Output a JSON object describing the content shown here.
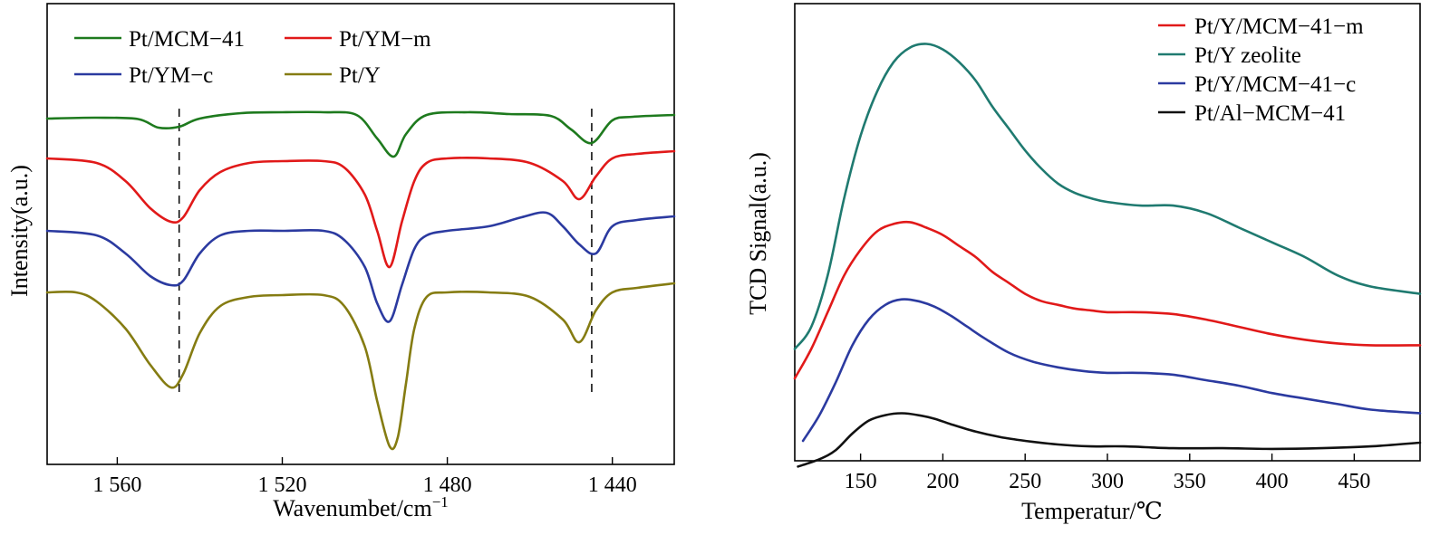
{
  "chart_data": [
    {
      "type": "line",
      "xlabel": "Wavenumbet/cm",
      "xlabel_sup": "−1",
      "ylabel": "Intensity(a.u.)",
      "xlim": [
        1577,
        1425
      ],
      "x_reversed": true,
      "xticks": [
        1560,
        1520,
        1480,
        1440
      ],
      "xtick_labels": [
        "1 560",
        "1 520",
        "1 480",
        "1 440"
      ],
      "y_ticks_shown": false,
      "legend": {
        "placement": "top-left",
        "columns": 2
      },
      "dashed_reference_lines": [
        1545,
        1445
      ],
      "series": [
        {
          "name": "Pt/MCM−41",
          "color": "#1e7a1e",
          "x": [
            1577,
            1565,
            1555,
            1550,
            1545,
            1540,
            1530,
            1520,
            1510,
            1502,
            1497,
            1493,
            1490,
            1485,
            1475,
            1465,
            1455,
            1450,
            1445,
            1440,
            1435,
            1425
          ],
          "y": [
            0.2,
            0.3,
            0.15,
            -0.8,
            -0.7,
            0.2,
            0.8,
            0.9,
            0.9,
            0.6,
            -2.0,
            -4.0,
            -1.5,
            0.6,
            0.9,
            0.7,
            0.5,
            -1.0,
            -2.5,
            0.0,
            0.4,
            0.6
          ]
        },
        {
          "name": "Pt/YM−m",
          "color": "#e11919",
          "x": [
            1577,
            1565,
            1558,
            1552,
            1547,
            1544,
            1540,
            1535,
            1528,
            1520,
            1510,
            1505,
            1500,
            1497,
            1494,
            1491,
            1488,
            1485,
            1480,
            1470,
            1460,
            1452,
            1448,
            1444,
            1440,
            1434,
            1425
          ],
          "y": [
            0.0,
            -0.5,
            -2.5,
            -5.5,
            -7.0,
            -6.5,
            -3.5,
            -1.5,
            -0.5,
            -0.3,
            -0.3,
            -1.0,
            -4.0,
            -8.0,
            -12.0,
            -7.0,
            -2.5,
            -0.5,
            0.0,
            0.0,
            -0.5,
            -2.5,
            -4.5,
            -2.0,
            0.0,
            0.5,
            0.8
          ]
        },
        {
          "name": "Pt/YM−c",
          "color": "#2b3aa0",
          "x": [
            1577,
            1565,
            1558,
            1552,
            1547,
            1544,
            1540,
            1535,
            1528,
            1520,
            1510,
            1505,
            1500,
            1497,
            1494,
            1491,
            1488,
            1485,
            1480,
            1470,
            1462,
            1456,
            1452,
            1448,
            1444,
            1440,
            1434,
            1425
          ],
          "y": [
            0.0,
            -0.5,
            -2.5,
            -5.0,
            -6.0,
            -5.5,
            -2.5,
            -0.5,
            0.0,
            0.0,
            0.0,
            -1.0,
            -4.0,
            -8.0,
            -10.0,
            -6.0,
            -2.0,
            -0.5,
            0.0,
            0.5,
            1.5,
            2.0,
            0.5,
            -1.5,
            -2.5,
            0.5,
            1.2,
            1.6
          ]
        },
        {
          "name": "Pt/Y",
          "color": "#857c12",
          "x": [
            1577,
            1570,
            1565,
            1558,
            1552,
            1547,
            1544,
            1540,
            1535,
            1528,
            1520,
            1510,
            1505,
            1500,
            1497,
            1494,
            1492,
            1490,
            1488,
            1485,
            1480,
            1470,
            1460,
            1452,
            1448,
            1444,
            1440,
            1434,
            1425
          ],
          "y": [
            0.0,
            0.0,
            -1.0,
            -4.0,
            -8.0,
            -10.5,
            -9.0,
            -4.5,
            -1.5,
            -0.5,
            -0.3,
            -0.3,
            -1.5,
            -6.0,
            -12.0,
            -17.0,
            -16.0,
            -10.0,
            -4.0,
            -0.5,
            0.0,
            0.0,
            -0.5,
            -3.0,
            -5.5,
            -2.0,
            0.0,
            0.5,
            1.0
          ]
        }
      ]
    },
    {
      "type": "line",
      "xlabel": "Temperatur/℃",
      "ylabel": "TCD Signal(a.u.)",
      "xlim": [
        110,
        490
      ],
      "xticks": [
        150,
        200,
        250,
        300,
        350,
        400,
        450
      ],
      "xtick_labels": [
        "150",
        "200",
        "250",
        "300",
        "350",
        "400",
        "450"
      ],
      "y_ticks_shown": false,
      "legend": {
        "placement": "top-right",
        "columns": 1
      },
      "series": [
        {
          "name": "Pt/Y/MCM−41−m",
          "color": "#e11919",
          "x": [
            110,
            120,
            130,
            140,
            150,
            160,
            170,
            180,
            190,
            200,
            210,
            220,
            230,
            240,
            250,
            260,
            270,
            280,
            290,
            300,
            320,
            340,
            360,
            380,
            400,
            420,
            440,
            460,
            490
          ],
          "y": [
            3.4,
            4.2,
            5.2,
            6.2,
            6.9,
            7.4,
            7.6,
            7.65,
            7.5,
            7.3,
            7.0,
            6.7,
            6.3,
            6.0,
            5.7,
            5.5,
            5.4,
            5.3,
            5.25,
            5.2,
            5.2,
            5.15,
            5.0,
            4.8,
            4.6,
            4.45,
            4.35,
            4.3,
            4.3
          ]
        },
        {
          "name": "Pt/Y zeolite",
          "color": "#1f7a70",
          "x": [
            110,
            120,
            130,
            140,
            150,
            160,
            170,
            180,
            190,
            200,
            210,
            220,
            230,
            240,
            250,
            260,
            270,
            280,
            290,
            300,
            320,
            340,
            360,
            380,
            400,
            420,
            440,
            460,
            490
          ],
          "y": [
            4.2,
            4.8,
            6.2,
            8.3,
            10.0,
            11.2,
            12.0,
            12.4,
            12.5,
            12.35,
            12.0,
            11.5,
            10.8,
            10.2,
            9.6,
            9.1,
            8.7,
            8.45,
            8.3,
            8.2,
            8.1,
            8.1,
            7.9,
            7.5,
            7.1,
            6.7,
            6.2,
            5.9,
            5.7
          ]
        },
        {
          "name": "Pt/Y/MCM−41−c",
          "color": "#2b3aa0",
          "x": [
            115,
            125,
            135,
            145,
            155,
            165,
            175,
            185,
            195,
            205,
            215,
            225,
            240,
            255,
            270,
            285,
            300,
            320,
            340,
            360,
            380,
            400,
            420,
            440,
            460,
            490
          ],
          "y": [
            1.7,
            2.4,
            3.3,
            4.3,
            5.0,
            5.4,
            5.55,
            5.5,
            5.35,
            5.1,
            4.8,
            4.5,
            4.1,
            3.85,
            3.7,
            3.6,
            3.55,
            3.55,
            3.5,
            3.35,
            3.2,
            3.0,
            2.85,
            2.7,
            2.55,
            2.45
          ]
        },
        {
          "name": "Pt/Al−MCM−41",
          "color": "#111111",
          "x": [
            112,
            125,
            135,
            145,
            155,
            165,
            175,
            185,
            195,
            205,
            220,
            235,
            250,
            270,
            290,
            310,
            340,
            370,
            400,
            430,
            460,
            490
          ],
          "y": [
            1.0,
            1.2,
            1.45,
            1.9,
            2.25,
            2.4,
            2.45,
            2.4,
            2.3,
            2.15,
            1.95,
            1.8,
            1.7,
            1.6,
            1.55,
            1.55,
            1.5,
            1.5,
            1.48,
            1.5,
            1.55,
            1.65
          ]
        }
      ]
    }
  ]
}
